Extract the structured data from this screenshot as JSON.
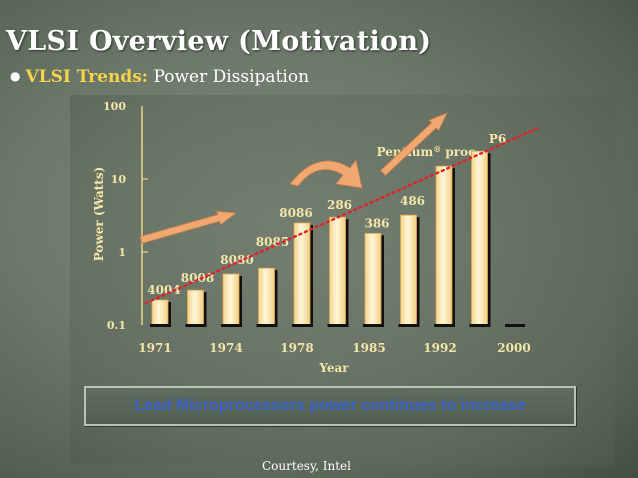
{
  "slide": {
    "title": "VLSI Overview (Motivation)",
    "bullet_key": "VLSI Trends:",
    "bullet_text": "Power Dissipation",
    "callout": "Lead Microprocessors power continues to increase",
    "courtesy": "Courtesy, Intel"
  },
  "colors": {
    "title": "#ffffff",
    "bullet_key": "#f5d34a",
    "chart_text": "#f3e6a8",
    "bar_fill": "#fbe9b6",
    "bar_edge": "#e2a74a",
    "bar_shadow": "#101010",
    "trend_line": "#e0222a",
    "arrow": "#f0a870",
    "callout_text": "#3a60c8"
  },
  "icons": [
    "trend-arrow-icon",
    "curved-arrow-icon"
  ],
  "chart_data": {
    "type": "bar",
    "scale": "log",
    "ylabel": "Power (Watts)",
    "xlabel": "Year",
    "ylim": [
      0.1,
      100
    ],
    "y_ticks": [
      "0.1",
      "1",
      "10",
      "100"
    ],
    "x_ticks": [
      "1971",
      "1974",
      "1978",
      "1985",
      "1992",
      "2000"
    ],
    "bars": [
      {
        "label": "4004",
        "value": 0.22
      },
      {
        "label": "8008",
        "value": 0.3
      },
      {
        "label": "8080",
        "value": 0.5
      },
      {
        "label": "8085",
        "value": 0.6
      },
      {
        "label": "8086",
        "value": 2.5
      },
      {
        "label": "286",
        "value": 3.0
      },
      {
        "label": "386",
        "value": 1.8
      },
      {
        "label": "486",
        "value": 3.2
      },
      {
        "label": "Pentium® proc",
        "value": 15
      },
      {
        "label": "P6",
        "value": 24
      },
      {
        "label": "",
        "value": 0.1
      }
    ],
    "trend_line": {
      "from": 0.2,
      "to": 50
    },
    "grid": false,
    "legend": "none"
  }
}
